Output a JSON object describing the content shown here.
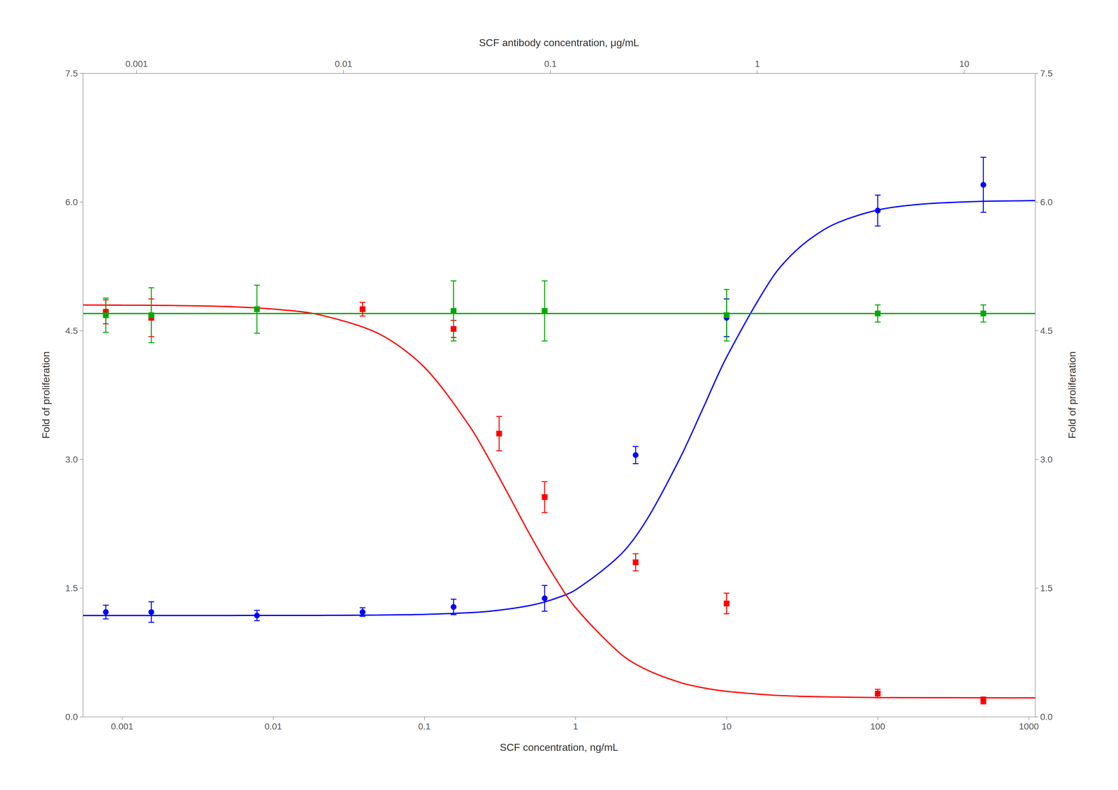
{
  "chart_data": {
    "type": "scatter",
    "xlabel": "SCF concentration, ng/mL",
    "x2label": "SCF antibody concentration, μg/mL",
    "ylabel": "Fold of proliferation",
    "y2label": "Fold of proliferation",
    "log": "x",
    "grid": false,
    "xlim": [
      0.00055,
      1100.0
    ],
    "xticks": [
      0.001,
      0.01,
      0.1,
      1,
      10,
      100,
      1000
    ],
    "x2lim": [
      0.00055,
      22.0
    ],
    "x2ticks": [
      0.001,
      0.01,
      0.1,
      1,
      10
    ],
    "ylim": [
      0.0,
      7.5
    ],
    "yticks": [
      {
        "value": 0.0,
        "label": "0.0"
      },
      {
        "value": 1.5,
        "label": "1.5"
      },
      {
        "value": 3.0,
        "label": "3.0"
      },
      {
        "value": 4.5,
        "label": "4.5"
      },
      {
        "value": 6.0,
        "label": "6.0"
      },
      {
        "value": 7.5,
        "label": "7.5"
      }
    ],
    "y2lim": [
      0.0,
      7.5
    ],
    "y2ticks": [
      {
        "value": 0.0,
        "label": "0.0"
      },
      {
        "value": 1.5,
        "label": "1.5"
      },
      {
        "value": 3.0,
        "label": "3.0"
      },
      {
        "value": 4.5,
        "label": "4.5"
      },
      {
        "value": 6.0,
        "label": "6.0"
      },
      {
        "value": 7.5,
        "label": "7.5"
      }
    ],
    "series": [
      {
        "type": "line",
        "color": "#0000FF",
        "line_style": "solid",
        "x": [
          0.00055,
          0.001,
          0.002,
          0.005,
          0.01,
          0.02,
          0.05,
          0.1,
          0.2,
          0.3,
          0.5,
          0.7,
          1,
          2,
          3,
          5,
          7,
          10,
          20,
          30,
          50,
          100,
          200,
          500,
          1000,
          1100
        ],
        "values": [
          1.18,
          1.18,
          1.18,
          1.18,
          1.181,
          1.181,
          1.185,
          1.193,
          1.213,
          1.238,
          1.297,
          1.365,
          1.478,
          1.894,
          2.312,
          3.04,
          3.6,
          4.192,
          5.115,
          5.462,
          5.73,
          5.906,
          5.976,
          6.008,
          6.015,
          6.016
        ]
      },
      {
        "type": "line",
        "color": "#FF0000",
        "line_style": "solid",
        "x": [
          0.00055,
          0.001,
          0.002,
          0.005,
          0.01,
          0.02,
          0.05,
          0.1,
          0.2,
          0.3,
          0.5,
          0.7,
          1,
          2,
          3,
          5,
          7,
          10,
          20,
          30,
          50,
          100,
          200,
          500,
          1000,
          1100
        ],
        "values": [
          4.799,
          4.797,
          4.794,
          4.78,
          4.752,
          4.687,
          4.464,
          4.074,
          3.382,
          2.846,
          2.121,
          1.676,
          1.272,
          0.73,
          0.542,
          0.396,
          0.337,
          0.296,
          0.252,
          0.239,
          0.23,
          0.224,
          0.222,
          0.221,
          0.22,
          0.22
        ]
      },
      {
        "type": "line",
        "color": "#00AA00",
        "line_style": "solid",
        "x": [
          0.00055,
          1100.0
        ],
        "values": [
          4.7,
          4.7
        ]
      },
      {
        "type": "scatter",
        "color": "#0000FF",
        "marker": "circle",
        "x": [
          0.00078,
          0.00156,
          0.0078,
          0.039,
          0.156,
          0.625,
          2.5,
          10.0,
          100.0,
          500.0
        ],
        "values": [
          1.22,
          1.22,
          1.18,
          1.22,
          1.28,
          1.38,
          3.05,
          4.65,
          5.9,
          6.2
        ],
        "yerr": [
          0.08,
          0.12,
          0.06,
          0.05,
          0.09,
          0.15,
          0.1,
          0.22,
          0.18,
          0.32
        ]
      },
      {
        "type": "scatter",
        "color": "#FF0000",
        "marker": "square",
        "x": [
          0.00078,
          0.00156,
          0.039,
          0.156,
          0.3125,
          0.625,
          2.5,
          10.0,
          100.0,
          500.0
        ],
        "values": [
          4.72,
          4.65,
          4.75,
          4.52,
          3.3,
          2.56,
          1.8,
          1.32,
          0.27,
          0.19
        ],
        "yerr": [
          0.14,
          0.22,
          0.08,
          0.1,
          0.2,
          0.18,
          0.1,
          0.12,
          0.05,
          0.04
        ]
      },
      {
        "type": "scatter",
        "color": "#00AA00",
        "marker": "square",
        "x": [
          0.00078,
          0.00156,
          0.0078,
          0.156,
          0.625,
          10.0,
          100.0,
          500.0
        ],
        "values": [
          4.68,
          4.68,
          4.75,
          4.73,
          4.73,
          4.68,
          4.7,
          4.7
        ],
        "yerr": [
          0.2,
          0.32,
          0.28,
          0.35,
          0.35,
          0.3,
          0.1,
          0.1
        ]
      }
    ]
  }
}
